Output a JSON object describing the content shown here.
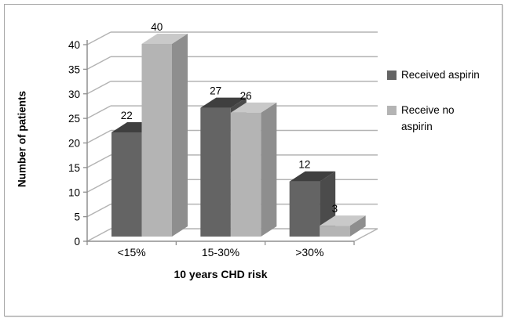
{
  "chart_data": {
    "type": "bar",
    "subtype": "3d_clustered_column",
    "title": "",
    "categories": [
      "<15%",
      "15-30%",
      ">30%"
    ],
    "series": [
      {
        "name": "Received aspirin",
        "values": [
          22,
          27,
          12
        ],
        "color": "#646464",
        "color_top": "#3f3f3f",
        "color_side": "#4b4b4b"
      },
      {
        "name": "Receive no aspirin",
        "values": [
          40,
          26,
          3
        ],
        "color": "#b4b4b4",
        "color_top": "#c9c9c9",
        "color_side": "#8e8e8e"
      }
    ],
    "xlabel": "10 years CHD risk",
    "ylabel": "Number of patients",
    "ylim": [
      0,
      40
    ],
    "ytick_step": 5,
    "grid": true,
    "data_labels": true,
    "legend_position": "right"
  },
  "legend": {
    "items": [
      {
        "label": "Received aspirin"
      },
      {
        "label": "Receive no\naspirin"
      }
    ]
  },
  "colors": {
    "gridline": "#b3b3b3",
    "axis": "#8f8f8f",
    "text": "#000000",
    "frame_border": "#a6a6a6",
    "background": "#ffffff"
  }
}
